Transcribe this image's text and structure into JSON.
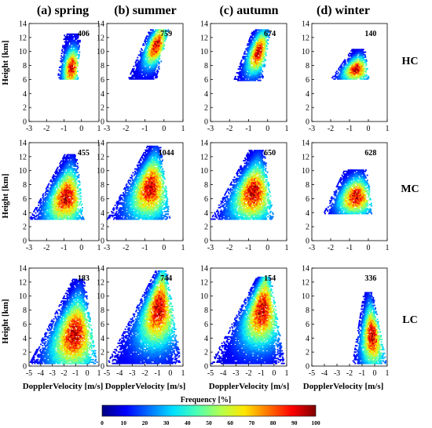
{
  "chart_data": {
    "type": "heatmap",
    "season_titles": [
      "(a) spring",
      "(b) summer",
      "(c) autumn",
      "(d) winter"
    ],
    "row_labels": [
      "HC",
      "MC",
      "LC"
    ],
    "ylabel": "Height [km]",
    "xlabel": "DopplerVelocity [m/s]",
    "colorbar": {
      "label": "Frequency [%]",
      "range": [
        0,
        100
      ],
      "ticks": [
        "0",
        "10",
        "20",
        "30",
        "40",
        "50",
        "60",
        "70",
        "80",
        "90",
        "100"
      ],
      "colors": [
        "#00007f",
        "#0000ff",
        "#0073ff",
        "#00e0ff",
        "#4dffb3",
        "#b3ff4d",
        "#ffe600",
        "#ff7300",
        "#ff0000",
        "#7f0000"
      ]
    },
    "panels": [
      {
        "season": "(a) spring",
        "type": "HC",
        "count": "406",
        "xlim": [
          -3,
          1
        ],
        "ylim": [
          0,
          14
        ],
        "xticks": [
          "-3",
          "-2",
          "-1",
          "0",
          "1"
        ],
        "yticks": [
          "0",
          "2",
          "4",
          "6",
          "8",
          "10",
          "12",
          "14"
        ],
        "cloud": {
          "x_low": [
            -1.4,
            -0.2
          ],
          "x_high": [
            -1.0,
            -0.1
          ],
          "h_range": [
            6.0,
            12.4
          ],
          "peak_x": -0.8,
          "peak_h": 7.6
        }
      },
      {
        "season": "(b) summer",
        "type": "HC",
        "count": "759",
        "xlim": [
          -3,
          1
        ],
        "ylim": [
          0,
          14
        ],
        "xticks": [
          "-3",
          "-2",
          "-1",
          "0",
          "1"
        ],
        "yticks": [
          "0",
          "2",
          "4",
          "6",
          "8",
          "10",
          "12",
          "14"
        ],
        "cloud": {
          "x_low": [
            -1.9,
            -0.4
          ],
          "x_high": [
            -0.8,
            0.2
          ],
          "h_range": [
            6.0,
            13.0
          ],
          "peak_x": -0.6,
          "peak_h": 10.8
        }
      },
      {
        "season": "(c) autumn",
        "type": "HC",
        "count": "674",
        "xlim": [
          -3,
          1
        ],
        "ylim": [
          0,
          14
        ],
        "xticks": [
          "-3",
          "-2",
          "-1",
          "0",
          "1"
        ],
        "yticks": [
          "0",
          "2",
          "4",
          "6",
          "8",
          "10",
          "12",
          "14"
        ],
        "cloud": {
          "x_low": [
            -1.8,
            -0.3
          ],
          "x_high": [
            -0.8,
            0.1
          ],
          "h_range": [
            5.8,
            13.0
          ],
          "peak_x": -0.6,
          "peak_h": 9.8
        }
      },
      {
        "season": "(d) winter",
        "type": "HC",
        "count": "140",
        "xlim": [
          -3,
          1
        ],
        "ylim": [
          0,
          14
        ],
        "xticks": [
          "-3",
          "-2",
          "-1",
          "0",
          "1"
        ],
        "yticks": [
          "0",
          "2",
          "4",
          "6",
          "8",
          "10",
          "12",
          "14"
        ],
        "cloud": {
          "x_low": [
            -2.0,
            0.0
          ],
          "x_high": [
            -0.9,
            -0.2
          ],
          "h_range": [
            6.0,
            10.2
          ],
          "peak_x": -0.7,
          "peak_h": 7.4
        }
      },
      {
        "season": "(a) spring",
        "type": "MC",
        "count": "455",
        "xlim": [
          -3,
          1
        ],
        "ylim": [
          0,
          14
        ],
        "xticks": [
          "-3",
          "-2",
          "-1",
          "0",
          "1"
        ],
        "yticks": [
          "0",
          "2",
          "4",
          "6",
          "8",
          "10",
          "12",
          "14"
        ],
        "cloud": {
          "x_low": [
            -3.0,
            0.1
          ],
          "x_high": [
            -1.0,
            -0.3
          ],
          "h_range": [
            3.0,
            12.2
          ],
          "peak_x": -0.9,
          "peak_h": 6.2
        }
      },
      {
        "season": "(b) summer",
        "type": "MC",
        "count": "1044",
        "xlim": [
          -3,
          1
        ],
        "ylim": [
          0,
          14
        ],
        "xticks": [
          "-3",
          "-2",
          "-1",
          "0",
          "1"
        ],
        "yticks": [
          "0",
          "2",
          "4",
          "6",
          "8",
          "10",
          "12",
          "14"
        ],
        "cloud": {
          "x_low": [
            -3.0,
            0.3
          ],
          "x_high": [
            -0.9,
            -0.2
          ],
          "h_range": [
            3.0,
            13.4
          ],
          "peak_x": -1.4,
          "peak_h": 7.5
        }
      },
      {
        "season": "(c) autumn",
        "type": "MC",
        "count": "650",
        "xlim": [
          -3,
          1
        ],
        "ylim": [
          0,
          14
        ],
        "xticks": [
          "-3",
          "-2",
          "-1",
          "0",
          "1"
        ],
        "yticks": [
          "0",
          "2",
          "4",
          "6",
          "8",
          "10",
          "12",
          "14"
        ],
        "cloud": {
          "x_low": [
            -3.0,
            0.3
          ],
          "x_high": [
            -1.0,
            -0.2
          ],
          "h_range": [
            3.0,
            12.8
          ],
          "peak_x": -1.1,
          "peak_h": 6.8
        }
      },
      {
        "season": "(d) winter",
        "type": "MC",
        "count": "628",
        "xlim": [
          -3,
          1
        ],
        "ylim": [
          0,
          14
        ],
        "xticks": [
          "-3",
          "-2",
          "-1",
          "0",
          "1"
        ],
        "yticks": [
          "0",
          "2",
          "4",
          "6",
          "8",
          "10",
          "12",
          "14"
        ],
        "cloud": {
          "x_low": [
            -2.4,
            0.2
          ],
          "x_high": [
            -1.3,
            -0.1
          ],
          "h_range": [
            3.8,
            10.0
          ],
          "peak_x": -0.8,
          "peak_h": 6.2
        }
      },
      {
        "season": "(a) spring",
        "type": "LC",
        "count": "183",
        "xlim": [
          -5,
          1
        ],
        "ylim": [
          0,
          14
        ],
        "xticks": [
          "-5",
          "-4",
          "-3",
          "-2",
          "-1",
          "0",
          "1"
        ],
        "yticks": [
          "0",
          "2",
          "4",
          "6",
          "8",
          "10",
          "12",
          "14"
        ],
        "cloud": {
          "x_low": [
            -5.0,
            0.8
          ],
          "x_high": [
            -1.3,
            -0.3
          ],
          "h_range": [
            0.3,
            12.3
          ],
          "peak_x": -1.0,
          "peak_h": 4.5
        }
      },
      {
        "season": "(b) summer",
        "type": "LC",
        "count": "744",
        "xlim": [
          -5,
          1
        ],
        "ylim": [
          0,
          14
        ],
        "xticks": [
          "-5",
          "-4",
          "-3",
          "-2",
          "-1",
          "0",
          "1"
        ],
        "yticks": [
          "0",
          "2",
          "4",
          "6",
          "8",
          "10",
          "12",
          "14"
        ],
        "cloud": {
          "x_low": [
            -5.0,
            0.8
          ],
          "x_high": [
            -1.2,
            -0.3
          ],
          "h_range": [
            0.3,
            13.5
          ],
          "peak_x": -0.9,
          "peak_h": 8.2
        }
      },
      {
        "season": "(c) autumn",
        "type": "LC",
        "count": "154",
        "xlim": [
          -5,
          1
        ],
        "ylim": [
          0,
          14
        ],
        "xticks": [
          "-5",
          "-4",
          "-3",
          "-2",
          "-1",
          "0",
          "1"
        ],
        "yticks": [
          "0",
          "2",
          "4",
          "6",
          "8",
          "10",
          "12",
          "14"
        ],
        "cloud": {
          "x_low": [
            -5.0,
            0.8
          ],
          "x_high": [
            -1.4,
            -0.3
          ],
          "h_range": [
            0.3,
            12.6
          ],
          "peak_x": -1.0,
          "peak_h": 8.0
        }
      },
      {
        "season": "(d) winter",
        "type": "LC",
        "count": "336",
        "xlim": [
          -5,
          1
        ],
        "ylim": [
          0,
          14
        ],
        "xticks": [
          "-5",
          "-4",
          "-3",
          "-2",
          "-1",
          "0",
          "1"
        ],
        "yticks": [
          "0",
          "2",
          "4",
          "6",
          "8",
          "10",
          "12",
          "14"
        ],
        "cloud": {
          "x_low": [
            -1.8,
            0.9
          ],
          "x_high": [
            -0.9,
            -0.2
          ],
          "h_range": [
            0.3,
            10.4
          ],
          "peak_x": -0.9,
          "peak_h": 4.2
        }
      }
    ]
  }
}
